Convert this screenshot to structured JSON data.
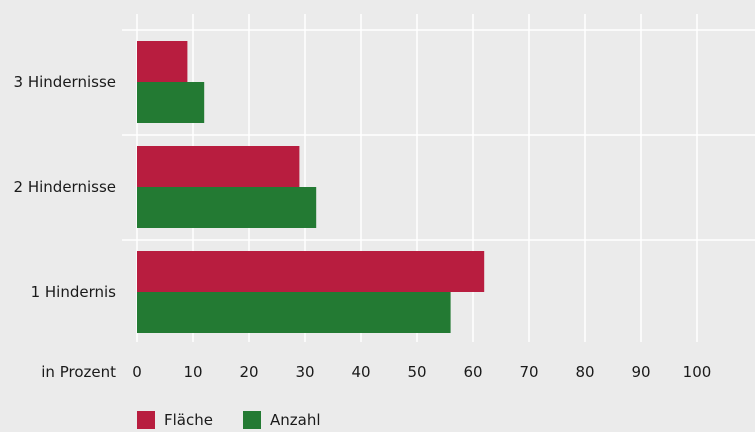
{
  "chart_data": {
    "type": "bar",
    "orientation": "horizontal",
    "categories": [
      "3 Hindernisse",
      "2 Hindernisse",
      "1 Hindernis"
    ],
    "series": [
      {
        "name": "Fläche",
        "color": "#b81d3f",
        "values": [
          9,
          29,
          62
        ]
      },
      {
        "name": "Anzahl",
        "color": "#237a33",
        "values": [
          12,
          32,
          56
        ]
      }
    ],
    "xlabel": "in Prozent",
    "xlim": [
      0,
      110
    ],
    "xticks": [
      0,
      10,
      20,
      30,
      40,
      50,
      60,
      70,
      80,
      90,
      100
    ],
    "grid": true,
    "legend": "bottom-left"
  }
}
